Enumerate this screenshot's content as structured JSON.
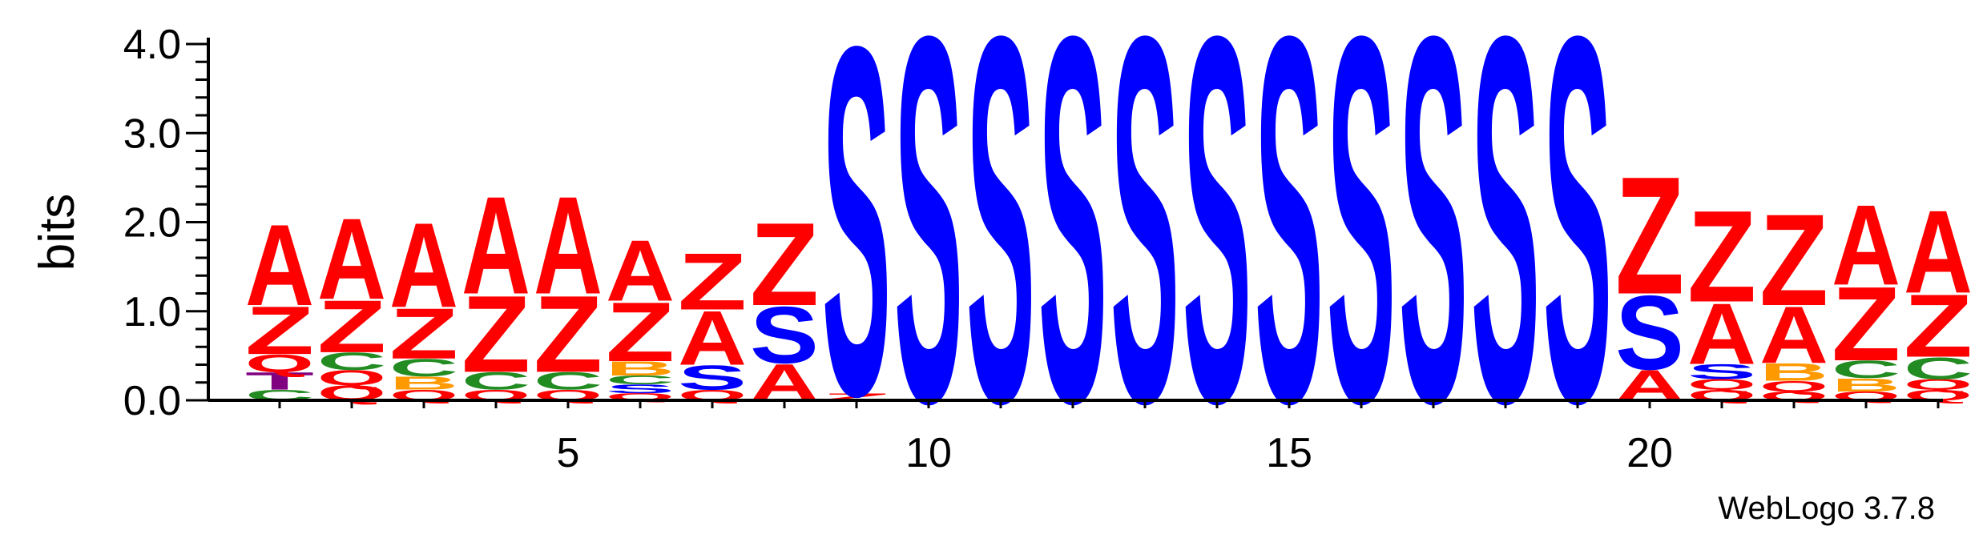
{
  "chart_data": {
    "type": "sequence_logo",
    "ylabel": "bits",
    "ylim": [
      0,
      4.0
    ],
    "y_ticks": [
      "0.0",
      "1.0",
      "2.0",
      "3.0",
      "4.0"
    ],
    "x_ticks": [
      {
        "position": 5,
        "label": "5"
      },
      {
        "position": 10,
        "label": "10"
      },
      {
        "position": 15,
        "label": "15"
      },
      {
        "position": 20,
        "label": "20"
      }
    ],
    "n_positions": 24,
    "colors": {
      "A": "#ff0000",
      "Z": "#ff0000",
      "S": "#0000ff",
      "C": "#228b22",
      "Q": "#ff0000",
      "B": "#ff9900",
      "T": "#800080"
    },
    "positions": [
      {
        "pos": 1,
        "stack": [
          [
            "C",
            0.12
          ],
          [
            "T",
            0.2
          ],
          [
            "Q",
            0.2
          ],
          [
            "Z",
            0.55
          ],
          [
            "A",
            0.93
          ]
        ]
      },
      {
        "pos": 2,
        "stack": [
          [
            "Q",
            0.17
          ],
          [
            "Q",
            0.17
          ],
          [
            "C",
            0.2
          ],
          [
            "Z",
            0.6
          ],
          [
            "A",
            0.93
          ]
        ]
      },
      {
        "pos": 3,
        "stack": [
          [
            "Q",
            0.12
          ],
          [
            "B",
            0.15
          ],
          [
            "C",
            0.2
          ],
          [
            "Z",
            0.58
          ],
          [
            "A",
            0.97
          ]
        ]
      },
      {
        "pos": 4,
        "stack": [
          [
            "Q",
            0.12
          ],
          [
            "C",
            0.2
          ],
          [
            "Z",
            0.88
          ],
          [
            "A",
            1.12
          ]
        ]
      },
      {
        "pos": 5,
        "stack": [
          [
            "Q",
            0.12
          ],
          [
            "C",
            0.2
          ],
          [
            "Z",
            0.88
          ],
          [
            "A",
            1.12
          ]
        ]
      },
      {
        "pos": 6,
        "stack": [
          [
            "Q",
            0.08
          ],
          [
            "S",
            0.1
          ],
          [
            "C",
            0.1
          ],
          [
            "B",
            0.16
          ],
          [
            "Z",
            0.68
          ],
          [
            "A",
            0.7
          ]
        ]
      },
      {
        "pos": 7,
        "stack": [
          [
            "Q",
            0.12
          ],
          [
            "S",
            0.28
          ],
          [
            "A",
            0.62
          ],
          [
            "Z",
            0.65
          ]
        ]
      },
      {
        "pos": 8,
        "stack": [
          [
            "A",
            0.42
          ],
          [
            "S",
            0.65
          ],
          [
            "Z",
            0.95
          ]
        ]
      },
      {
        "pos": 9,
        "stack": [
          [
            "Z",
            0.08
          ],
          [
            "S",
            4.0
          ]
        ]
      },
      {
        "pos": 10,
        "stack": [
          [
            "S",
            4.2
          ]
        ]
      },
      {
        "pos": 11,
        "stack": [
          [
            "S",
            4.2
          ]
        ]
      },
      {
        "pos": 12,
        "stack": [
          [
            "S",
            4.2
          ]
        ]
      },
      {
        "pos": 13,
        "stack": [
          [
            "S",
            4.2
          ]
        ]
      },
      {
        "pos": 14,
        "stack": [
          [
            "S",
            4.2
          ]
        ]
      },
      {
        "pos": 15,
        "stack": [
          [
            "S",
            4.2
          ]
        ]
      },
      {
        "pos": 16,
        "stack": [
          [
            "S",
            4.2
          ]
        ]
      },
      {
        "pos": 17,
        "stack": [
          [
            "S",
            4.2
          ]
        ]
      },
      {
        "pos": 18,
        "stack": [
          [
            "S",
            4.2
          ]
        ]
      },
      {
        "pos": 19,
        "stack": [
          [
            "S",
            4.2
          ]
        ]
      },
      {
        "pos": 20,
        "stack": [
          [
            "A",
            0.35
          ],
          [
            "S",
            0.85
          ],
          [
            "Z",
            1.35
          ]
        ]
      },
      {
        "pos": 21,
        "stack": [
          [
            "Q",
            0.12
          ],
          [
            "Q",
            0.12
          ],
          [
            "S",
            0.17
          ],
          [
            "A",
            0.7
          ],
          [
            "Z",
            1.05
          ]
        ]
      },
      {
        "pos": 22,
        "stack": [
          [
            "Q",
            0.1
          ],
          [
            "Q",
            0.12
          ],
          [
            "B",
            0.2
          ],
          [
            "A",
            0.65
          ],
          [
            "Z",
            1.05
          ]
        ]
      },
      {
        "pos": 23,
        "stack": [
          [
            "Q",
            0.1
          ],
          [
            "B",
            0.15
          ],
          [
            "C",
            0.2
          ],
          [
            "Z",
            0.85
          ],
          [
            "A",
            0.92
          ]
        ]
      },
      {
        "pos": 24,
        "stack": [
          [
            "Q",
            0.12
          ],
          [
            "Q",
            0.12
          ],
          [
            "C",
            0.25
          ],
          [
            "Z",
            0.72
          ],
          [
            "A",
            0.95
          ]
        ]
      }
    ]
  },
  "credit": "WebLogo 3.7.8"
}
